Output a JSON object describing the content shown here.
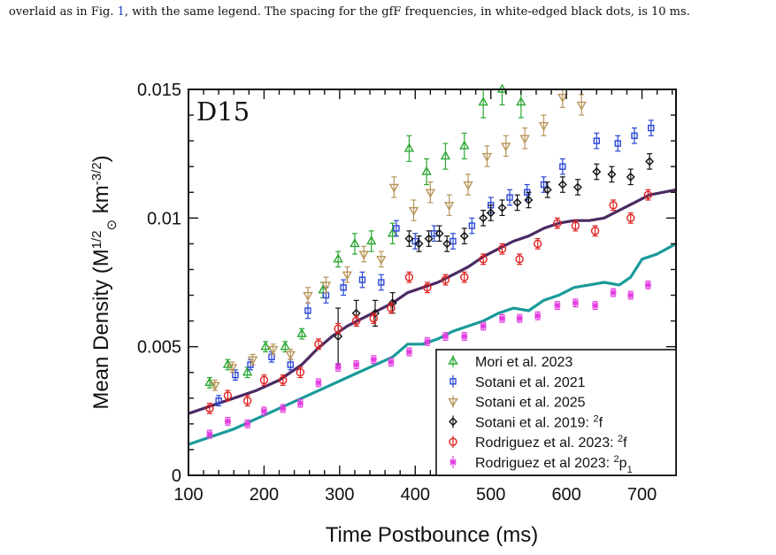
{
  "caption": {
    "before": "overlaid as in Fig. ",
    "ref": "1",
    "after": ", with the same legend. The spacing for the gfF frequencies, in white-edged black dots, is 10 ms."
  },
  "chart_data": {
    "type": "scatter",
    "panel_label": "D15",
    "xlabel": "Time Postbounce (ms)",
    "ylabel_main": "Mean Density (M",
    "ylabel_sup": "1/2",
    "ylabel_sub": "⊙",
    "ylabel_units": " km",
    "ylabel_units_sup": "-3/2",
    "ylabel_close": ")",
    "xlim": [
      100,
      745
    ],
    "ylim": [
      0,
      0.015
    ],
    "xticks": [
      100,
      200,
      300,
      400,
      500,
      600,
      700
    ],
    "xtick_labels": [
      "100",
      "200",
      "300",
      "400",
      "500",
      "600",
      "700"
    ],
    "yticks": [
      0,
      0.005,
      0.01,
      0.015
    ],
    "ytick_labels": [
      "0",
      "0.005",
      "0.01",
      "0.015"
    ],
    "legend_position": "lower-right",
    "lines": [
      {
        "color": "#4a2b63",
        "x": [
          100,
          130,
          160,
          190,
          220,
          250,
          270,
          290,
          310,
          330,
          350,
          370,
          390,
          410,
          430,
          450,
          470,
          490,
          510,
          530,
          550,
          570,
          590,
          610,
          630,
          650,
          670,
          690,
          710,
          745
        ],
        "y": [
          0.0024,
          0.0027,
          0.003,
          0.0033,
          0.0037,
          0.0043,
          0.0049,
          0.0054,
          0.0058,
          0.0061,
          0.0064,
          0.0067,
          0.0071,
          0.0073,
          0.0075,
          0.0078,
          0.0081,
          0.0085,
          0.0088,
          0.0091,
          0.0093,
          0.0096,
          0.0098,
          0.0099,
          0.0099,
          0.01,
          0.0103,
          0.0106,
          0.0109,
          0.0111
        ]
      },
      {
        "color": "#1a9a9a",
        "x": [
          100,
          130,
          160,
          190,
          220,
          250,
          280,
          310,
          340,
          370,
          390,
          410,
          430,
          450,
          470,
          490,
          510,
          530,
          550,
          570,
          590,
          610,
          630,
          650,
          670,
          685,
          700,
          720,
          745
        ],
        "y": [
          0.0012,
          0.0015,
          0.0018,
          0.0022,
          0.0026,
          0.003,
          0.0034,
          0.0038,
          0.0042,
          0.0046,
          0.0051,
          0.0051,
          0.0053,
          0.0056,
          0.0058,
          0.006,
          0.0063,
          0.0065,
          0.0064,
          0.0068,
          0.007,
          0.0073,
          0.0074,
          0.0075,
          0.0074,
          0.0077,
          0.0084,
          0.0086,
          0.009
        ]
      }
    ],
    "series": [
      {
        "name": "Mori et al. 2023",
        "marker": "triangle-up",
        "color": "#2aa832",
        "x": [
          128,
          152,
          178,
          202,
          228,
          250,
          278,
          298,
          320,
          342,
          370,
          392,
          415,
          440,
          465,
          490,
          515,
          540
        ],
        "y": [
          0.0036,
          0.0043,
          0.004,
          0.005,
          0.005,
          0.0055,
          0.0072,
          0.0084,
          0.009,
          0.0091,
          0.0094,
          0.0127,
          0.0118,
          0.0124,
          0.0128,
          0.0145,
          0.015,
          0.0145
        ],
        "err": [
          0.0002,
          0.0002,
          0.0002,
          0.0002,
          0.0002,
          0.0002,
          0.0003,
          0.0003,
          0.0004,
          0.0004,
          0.0004,
          0.0005,
          0.0005,
          0.0005,
          0.0005,
          0.0006,
          0.0006,
          0.0006
        ]
      },
      {
        "name": "Sotani et al. 2021",
        "marker": "square",
        "color": "#2a46d4",
        "x": [
          140,
          162,
          182,
          210,
          235,
          258,
          282,
          305,
          330,
          355,
          375,
          400,
          425,
          450,
          475,
          500,
          525,
          548,
          570,
          595,
          640,
          668,
          690,
          712
        ],
        "y": [
          0.0029,
          0.0039,
          0.0043,
          0.0046,
          0.0043,
          0.0064,
          0.007,
          0.0073,
          0.0076,
          0.0075,
          0.0096,
          0.0091,
          0.0094,
          0.0091,
          0.0097,
          0.0105,
          0.0108,
          0.011,
          0.0113,
          0.012,
          0.013,
          0.0129,
          0.0132,
          0.0135
        ],
        "err": [
          0.0002,
          0.0002,
          0.0002,
          0.0002,
          0.0002,
          0.0003,
          0.0003,
          0.0003,
          0.0003,
          0.0003,
          0.0003,
          0.0003,
          0.0003,
          0.0003,
          0.0003,
          0.0003,
          0.0003,
          0.0003,
          0.0003,
          0.0003,
          0.0003,
          0.0003,
          0.0003,
          0.0003
        ]
      },
      {
        "name": "Sotani et al. 2025",
        "marker": "triangle-down",
        "color": "#b8955a",
        "x": [
          135,
          158,
          185,
          212,
          235,
          258,
          282,
          310,
          332,
          355,
          372,
          398,
          420,
          445,
          470,
          495,
          520,
          545,
          570,
          595,
          620
        ],
        "y": [
          0.0035,
          0.0042,
          0.0045,
          0.0049,
          0.0047,
          0.007,
          0.0074,
          0.0078,
          0.0086,
          0.0084,
          0.0112,
          0.0103,
          0.011,
          0.0105,
          0.0113,
          0.0124,
          0.0128,
          0.0131,
          0.0136,
          0.0147,
          0.0144
        ],
        "err": [
          0.0002,
          0.0002,
          0.0002,
          0.0002,
          0.0002,
          0.0003,
          0.0003,
          0.0003,
          0.0003,
          0.0003,
          0.0004,
          0.0004,
          0.0004,
          0.0004,
          0.0004,
          0.0004,
          0.0004,
          0.0004,
          0.0004,
          0.0004,
          0.0004
        ]
      },
      {
        "name": "Sotani et al. 2019: ",
        "name_sup": "2",
        "name_after": "f",
        "marker": "diamond",
        "color": "#111111",
        "x": [
          298,
          322,
          347,
          370,
          392,
          405,
          418,
          432,
          442,
          465,
          490,
          500,
          515,
          535,
          550,
          575,
          595,
          615,
          640,
          660,
          685,
          710
        ],
        "y": [
          0.0054,
          0.0063,
          0.0063,
          0.0067,
          0.0092,
          0.009,
          0.0092,
          0.0094,
          0.009,
          0.0093,
          0.01,
          0.0102,
          0.0104,
          0.0106,
          0.0107,
          0.0111,
          0.0113,
          0.0112,
          0.0118,
          0.0117,
          0.0116,
          0.0122
        ],
        "err": [
          0.0011,
          0.0005,
          0.0005,
          0.0004,
          0.0003,
          0.0003,
          0.0003,
          0.0003,
          0.0003,
          0.0003,
          0.0003,
          0.0003,
          0.0003,
          0.0003,
          0.0003,
          0.0003,
          0.0003,
          0.0003,
          0.0003,
          0.0003,
          0.0003,
          0.0003
        ]
      },
      {
        "name": "Rodriguez et al. 2023: ",
        "name_sup": "2",
        "name_after": "f",
        "marker": "circle",
        "color": "#e02020",
        "x": [
          128,
          152,
          178,
          200,
          225,
          248,
          272,
          298,
          322,
          345,
          368,
          392,
          416,
          440,
          465,
          490,
          515,
          538,
          562,
          588,
          612,
          638,
          662,
          685,
          708
        ],
        "y": [
          0.0026,
          0.0031,
          0.0029,
          0.0037,
          0.0037,
          0.004,
          0.0051,
          0.0057,
          0.006,
          0.0061,
          0.0065,
          0.0077,
          0.0073,
          0.0076,
          0.0077,
          0.0084,
          0.0088,
          0.0084,
          0.009,
          0.0098,
          0.0097,
          0.0095,
          0.0105,
          0.01,
          0.0109
        ],
        "err": [
          0.0002,
          0.0002,
          0.0002,
          0.0002,
          0.0002,
          0.0002,
          0.0002,
          0.0002,
          0.0002,
          0.0002,
          0.0002,
          0.0002,
          0.0002,
          0.0002,
          0.0002,
          0.0002,
          0.0002,
          0.0002,
          0.0002,
          0.0002,
          0.0002,
          0.0002,
          0.0002,
          0.0002,
          0.0002
        ]
      },
      {
        "name": "Rodriguez et al 2023: ",
        "name_sup": "2",
        "name_after": "p",
        "name_sub": "1",
        "marker": "star",
        "color": "#e23ce0",
        "x": [
          128,
          152,
          178,
          200,
          225,
          248,
          272,
          298,
          322,
          345,
          368,
          392,
          416,
          440,
          465,
          490,
          515,
          538,
          562,
          588,
          612,
          638,
          662,
          685,
          708
        ],
        "y": [
          0.0016,
          0.0021,
          0.002,
          0.0025,
          0.0026,
          0.0028,
          0.0036,
          0.0042,
          0.0043,
          0.0045,
          0.0044,
          0.0048,
          0.0052,
          0.0054,
          0.0054,
          0.0058,
          0.0061,
          0.0061,
          0.0062,
          0.0066,
          0.0067,
          0.0066,
          0.0071,
          0.007,
          0.0074
        ],
        "err": [
          0.00015,
          0.00015,
          0.00015,
          0.00015,
          0.00015,
          0.00015,
          0.00015,
          0.00015,
          0.00015,
          0.00015,
          0.00015,
          0.00015,
          0.00015,
          0.00015,
          0.00015,
          0.00015,
          0.00015,
          0.00015,
          0.00015,
          0.00015,
          0.00015,
          0.00015,
          0.00015,
          0.00015,
          0.00015
        ]
      }
    ]
  }
}
